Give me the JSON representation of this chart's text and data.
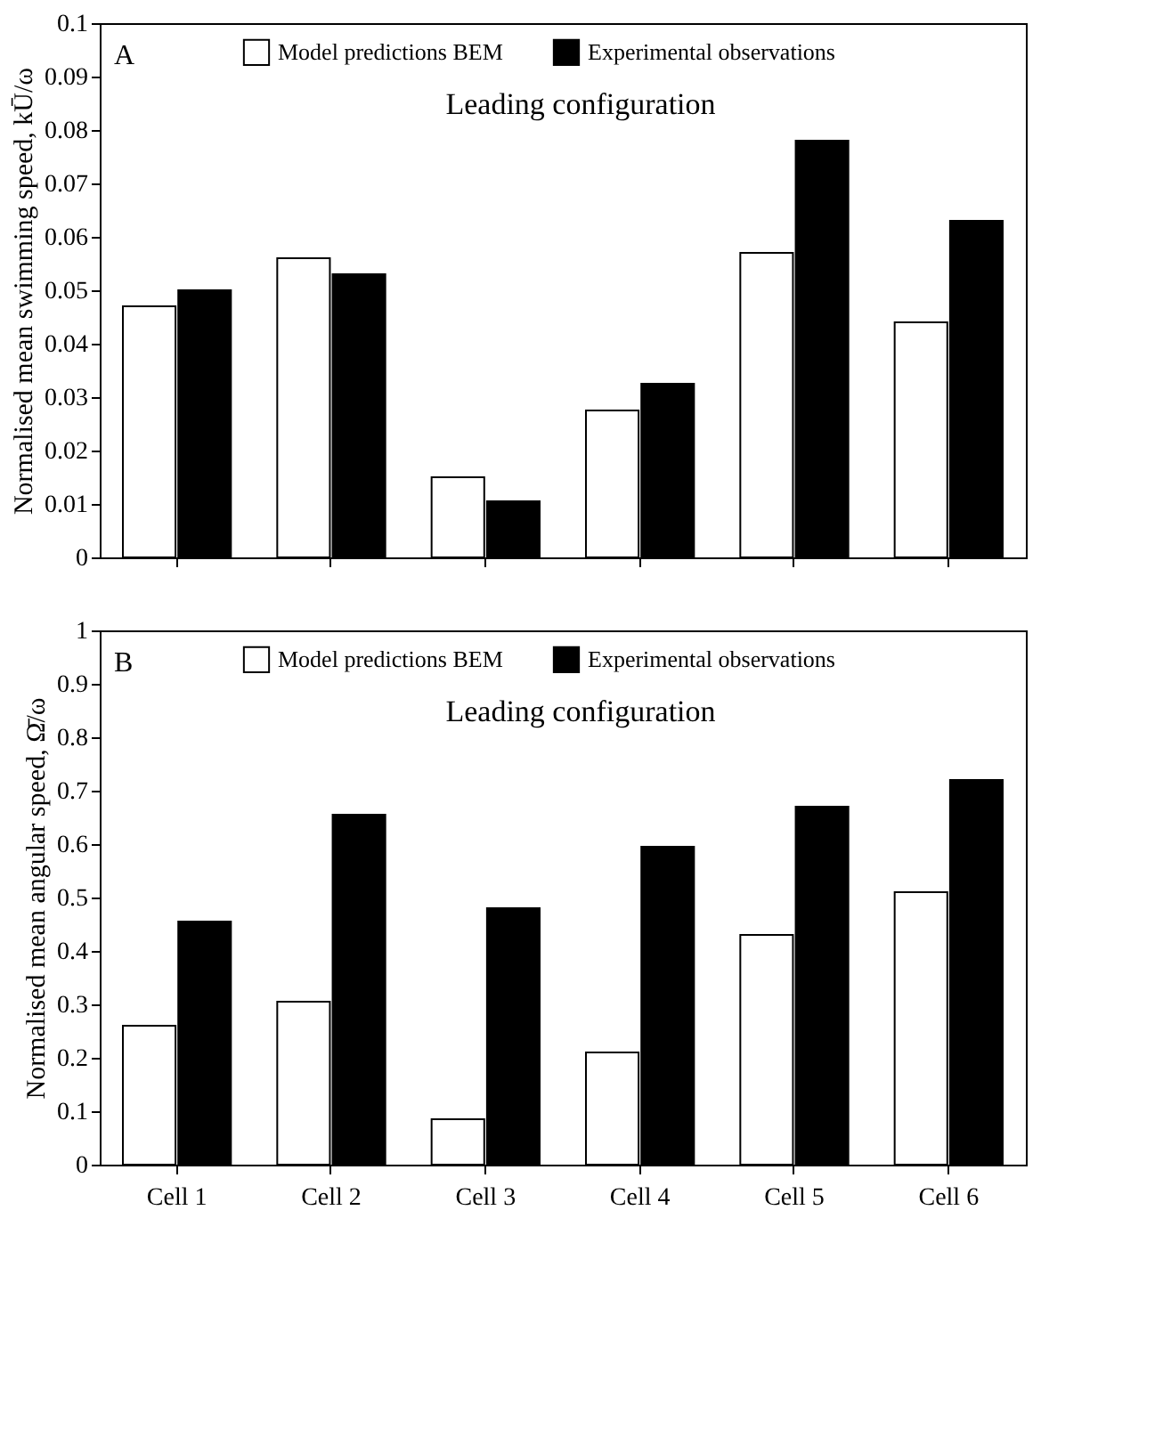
{
  "chart_data": [
    {
      "type": "bar",
      "ylabel": "Normalised mean swimming speed, kŪ/ω",
      "categories": [
        null,
        null,
        null,
        null,
        null,
        null
      ],
      "series": [
        {
          "name": "Model predictions BEM",
          "color": "#ffffff",
          "values": [
            0.047,
            0.056,
            0.015,
            0.0275,
            0.057,
            0.044
          ]
        },
        {
          "name": "Experimental observations",
          "color": "#000000",
          "values": [
            0.05,
            0.053,
            0.0105,
            0.0325,
            0.078,
            0.063
          ]
        }
      ],
      "ylim": [
        0,
        0.1
      ],
      "yticks": [
        0,
        0.01,
        0.02,
        0.03,
        0.04,
        0.05,
        0.06,
        0.07,
        0.08,
        0.09,
        0.1
      ],
      "grid": false,
      "legend": "top",
      "tick_labels": "y",
      "annotations": [
        "A",
        "Leading configuration"
      ]
    },
    {
      "type": "bar",
      "ylabel": "Normalised mean angular speed, Ω̄/ω",
      "categories": [
        "Cell 1",
        "Cell 2",
        "Cell 3",
        "Cell 4",
        "Cell 5",
        "Cell 6"
      ],
      "series": [
        {
          "name": "Model predictions BEM",
          "color": "#ffffff",
          "values": [
            0.26,
            0.305,
            0.085,
            0.21,
            0.43,
            0.51
          ]
        },
        {
          "name": "Experimental observations",
          "color": "#000000",
          "values": [
            0.455,
            0.655,
            0.48,
            0.595,
            0.67,
            0.72
          ]
        }
      ],
      "ylim": [
        0,
        1
      ],
      "yticks": [
        0,
        0.1,
        0.2,
        0.3,
        0.4,
        0.5,
        0.6,
        0.7,
        0.8,
        0.9,
        1
      ],
      "grid": false,
      "legend": "top",
      "annotations": [
        "B",
        "Leading configuration"
      ]
    }
  ]
}
